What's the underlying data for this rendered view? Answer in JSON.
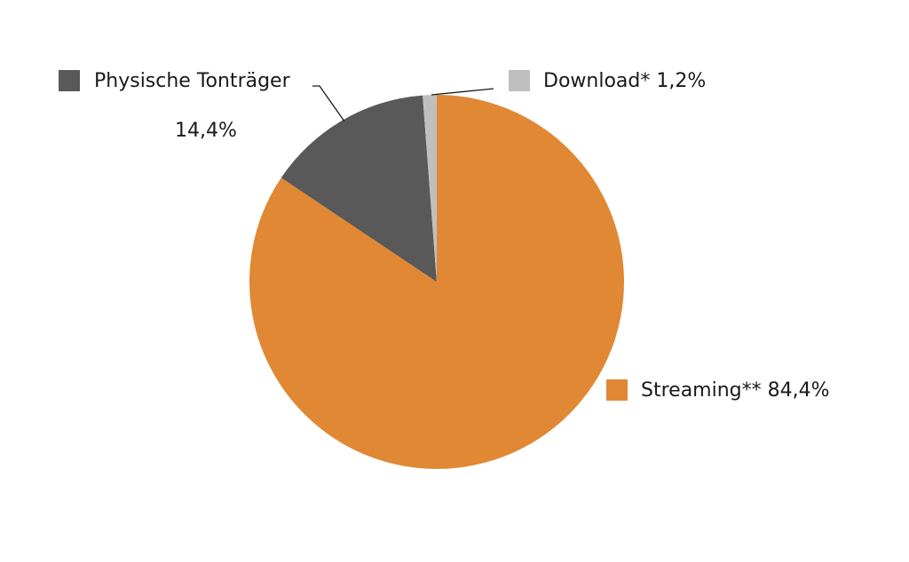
{
  "chart_data": {
    "type": "pie",
    "categories": [
      "Streaming**",
      "Physische Tonträger",
      "Download*"
    ],
    "values": [
      84.4,
      14.4,
      1.2
    ],
    "value_labels": [
      "84,4%",
      "14,4%",
      "1,2%"
    ],
    "colors": [
      "#e08833",
      "#595959",
      "#bfbfbf"
    ]
  }
}
